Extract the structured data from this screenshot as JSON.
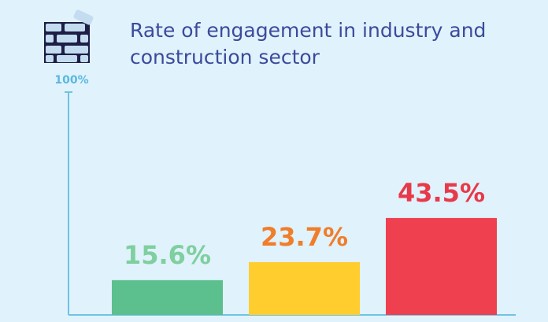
{
  "chart_data": {
    "type": "bar",
    "title": "Rate of engagement in industry and construction sector",
    "categories": [
      null,
      null,
      null
    ],
    "values": [
      15.6,
      23.7,
      43.5
    ],
    "value_labels": [
      "15.6%",
      "23.7%",
      "43.5%"
    ],
    "colors": [
      "#5cc08e",
      "#ffcd2e",
      "#ef4050"
    ],
    "label_colors": [
      "#7fcf9f",
      "#f07d2a",
      "#e8394a"
    ],
    "ylim": [
      0,
      100
    ],
    "yticks": [
      {
        "value": 100,
        "label": "100%"
      }
    ],
    "grid": false
  }
}
